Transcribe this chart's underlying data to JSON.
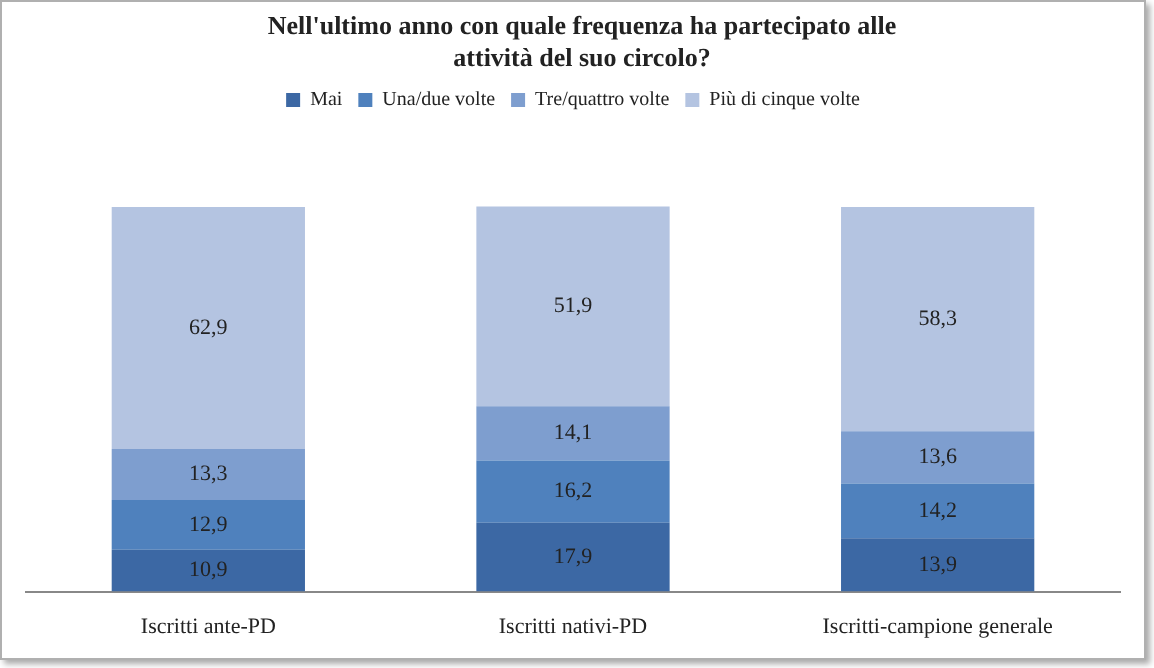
{
  "chart_data": {
    "type": "bar",
    "stacked": true,
    "title": "Nell'ultimo anno con quale frequenza ha partecipato alle attività del suo circolo?",
    "categories": [
      "Iscritti ante-PD",
      "Iscritti nativi-PD",
      "Iscritti-campione generale"
    ],
    "series": [
      {
        "name": "Mai",
        "color": "#3c68a4",
        "values": [
          10.9,
          17.9,
          13.9
        ],
        "value_labels": [
          "10,9",
          "17,9",
          "13,9"
        ]
      },
      {
        "name": "Una/due volte",
        "color": "#4f81bd",
        "values": [
          12.9,
          16.2,
          14.2
        ],
        "value_labels": [
          "12,9",
          "16,2",
          "14,2"
        ]
      },
      {
        "name": "Tre/quattro volte",
        "color": "#7e9ecf",
        "values": [
          13.3,
          14.1,
          13.6
        ],
        "value_labels": [
          "13,3",
          "14,1",
          "13,6"
        ]
      },
      {
        "name": "Più di cinque volte",
        "color": "#b4c4e1",
        "values": [
          62.9,
          51.9,
          58.3
        ],
        "value_labels": [
          "62,9",
          "51,9",
          "58,3"
        ]
      }
    ],
    "legend": "top",
    "grid": false
  }
}
